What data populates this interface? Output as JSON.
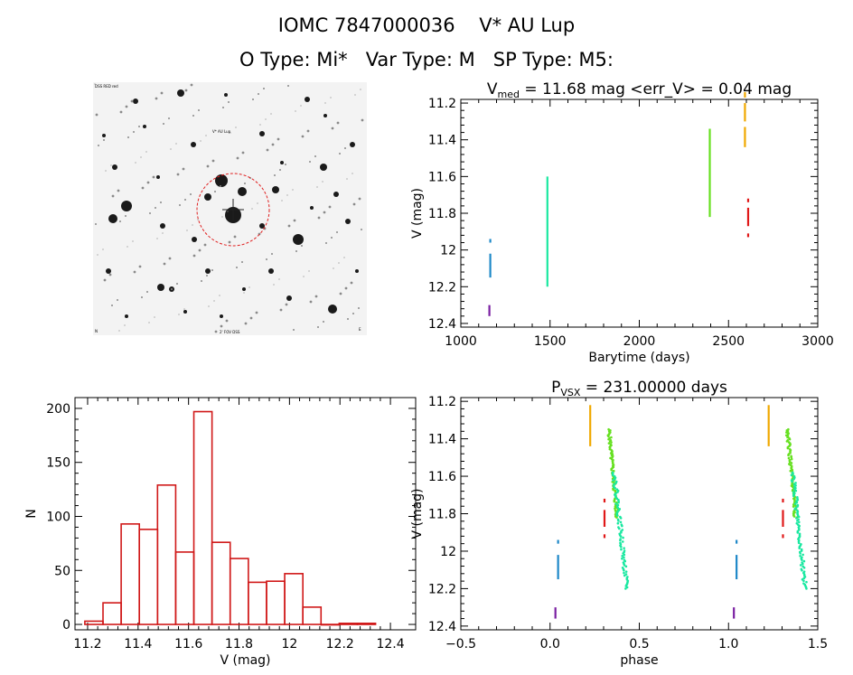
{
  "header": {
    "line1": "IOMC 7847000036    V* AU Lup",
    "line2": "O Type: Mi*   Var Type: M   SP Type: M5:"
  },
  "finder": {
    "label_top_left": "DSS RED red",
    "label_target": "V* AU Lup",
    "label_bottom_left": "N",
    "label_bottom_center": "2' FOV DSS",
    "label_bottom_right": "E"
  },
  "chart_data": [
    {
      "id": "lightcurve",
      "type": "scatter",
      "title": "V_med = 11.68 mag <err_V> = 0.04 mag",
      "title_parts": {
        "v": "V",
        "sub": "med",
        "rest": " = 11.68 mag <err_V> = 0.04 mag"
      },
      "xlabel": "Barytime (days)",
      "ylabel": "V (mag)",
      "xlim": [
        1000,
        3000
      ],
      "ylim": [
        12.42,
        11.18
      ],
      "xticks": [
        1000,
        1500,
        2000,
        2500,
        3000
      ],
      "yticks": [
        11.2,
        11.4,
        11.6,
        11.8,
        12.0,
        12.2,
        12.4
      ],
      "series": [
        {
          "color": "#7a1fa2",
          "segments": [
            [
              1160,
              12.3,
              12.36
            ]
          ]
        },
        {
          "color": "#1e88c8",
          "segments": [
            [
              1165,
              11.94,
              11.96
            ],
            [
              1165,
              12.02,
              12.15
            ]
          ]
        },
        {
          "color": "#19e8a0",
          "segments": [
            [
              1485,
              11.6,
              12.2
            ]
          ]
        },
        {
          "color": "#66e020",
          "segments": [
            [
              2395,
              11.34,
              11.82
            ]
          ]
        },
        {
          "color": "#f0a800",
          "segments": [
            [
              2592,
              11.14,
              11.17
            ],
            [
              2592,
              11.2,
              11.3
            ],
            [
              2592,
              11.33,
              11.44
            ]
          ]
        },
        {
          "color": "#e01818",
          "segments": [
            [
              2610,
              11.72,
              11.74
            ],
            [
              2610,
              11.77,
              11.87
            ],
            [
              2610,
              11.91,
              11.93
            ]
          ]
        }
      ]
    },
    {
      "id": "histogram",
      "type": "bar",
      "xlabel": "V (mag)",
      "ylabel": "N",
      "xlim": [
        11.15,
        12.5
      ],
      "ylim": [
        -5,
        210
      ],
      "xticks": [
        11.2,
        11.4,
        11.6,
        11.8,
        12.0,
        12.2,
        12.4
      ],
      "yticks": [
        0,
        50,
        100,
        150,
        200
      ],
      "bin_width": 0.072,
      "bins": [
        {
          "x": 11.225,
          "n": 3
        },
        {
          "x": 11.297,
          "n": 20
        },
        {
          "x": 11.369,
          "n": 93
        },
        {
          "x": 11.441,
          "n": 88
        },
        {
          "x": 11.513,
          "n": 129
        },
        {
          "x": 11.585,
          "n": 67
        },
        {
          "x": 11.657,
          "n": 197
        },
        {
          "x": 11.729,
          "n": 76
        },
        {
          "x": 11.801,
          "n": 61
        },
        {
          "x": 11.873,
          "n": 39
        },
        {
          "x": 11.945,
          "n": 40
        },
        {
          "x": 12.017,
          "n": 47
        },
        {
          "x": 12.089,
          "n": 16
        },
        {
          "x": 12.161,
          "n": 0
        },
        {
          "x": 12.233,
          "n": 1
        },
        {
          "x": 12.305,
          "n": 1
        }
      ]
    },
    {
      "id": "phased",
      "type": "scatter",
      "title": "P_VSX = 231.00000 days",
      "title_parts": {
        "v": "P",
        "sub": "VSX",
        "rest": " = 231.00000 days"
      },
      "xlabel": "phase",
      "ylabel": "V (mag)",
      "xlim": [
        -0.5,
        1.5
      ],
      "ylim": [
        12.42,
        11.18
      ],
      "xticks": [
        -0.5,
        0.0,
        0.5,
        1.0,
        1.5
      ],
      "xtick_labels": [
        "−0.5",
        "0.0",
        "0.5",
        "1.0",
        "1.5"
      ],
      "yticks": [
        11.2,
        11.4,
        11.6,
        11.8,
        12.0,
        12.2,
        12.4
      ],
      "series": [
        {
          "color": "#7a1fa2",
          "segments": [
            [
              0.03,
              12.3,
              12.36
            ],
            [
              1.03,
              12.3,
              12.36
            ]
          ]
        },
        {
          "color": "#1e88c8",
          "segments": [
            [
              0.045,
              11.94,
              11.96
            ],
            [
              0.045,
              12.02,
              12.15
            ],
            [
              1.045,
              11.94,
              11.96
            ],
            [
              1.045,
              12.02,
              12.15
            ]
          ]
        },
        {
          "color": "#f0a800",
          "segments": [
            [
              0.225,
              11.22,
              11.44
            ],
            [
              1.225,
              11.22,
              11.44
            ]
          ]
        },
        {
          "color": "#e01818",
          "segments": [
            [
              0.305,
              11.72,
              11.74
            ],
            [
              0.305,
              11.78,
              11.87
            ],
            [
              0.305,
              11.91,
              11.93
            ],
            [
              1.305,
              11.72,
              11.74
            ],
            [
              1.305,
              11.78,
              11.87
            ],
            [
              1.305,
              11.91,
              11.93
            ]
          ]
        }
      ],
      "bands": [
        {
          "color": "#66e020",
          "points": [
            [
              0.33,
              11.35
            ],
            [
              0.375,
              11.82
            ]
          ],
          "width": 0.018
        },
        {
          "color": "#19e8a0",
          "points": [
            [
              0.36,
              11.58
            ],
            [
              0.43,
              12.2
            ]
          ],
          "width": 0.022
        },
        {
          "color": "#66e020",
          "points": [
            [
              1.33,
              11.35
            ],
            [
              1.375,
              11.82
            ]
          ],
          "width": 0.018
        },
        {
          "color": "#19e8a0",
          "points": [
            [
              1.36,
              11.58
            ],
            [
              1.43,
              12.2
            ]
          ],
          "width": 0.022
        }
      ]
    }
  ]
}
